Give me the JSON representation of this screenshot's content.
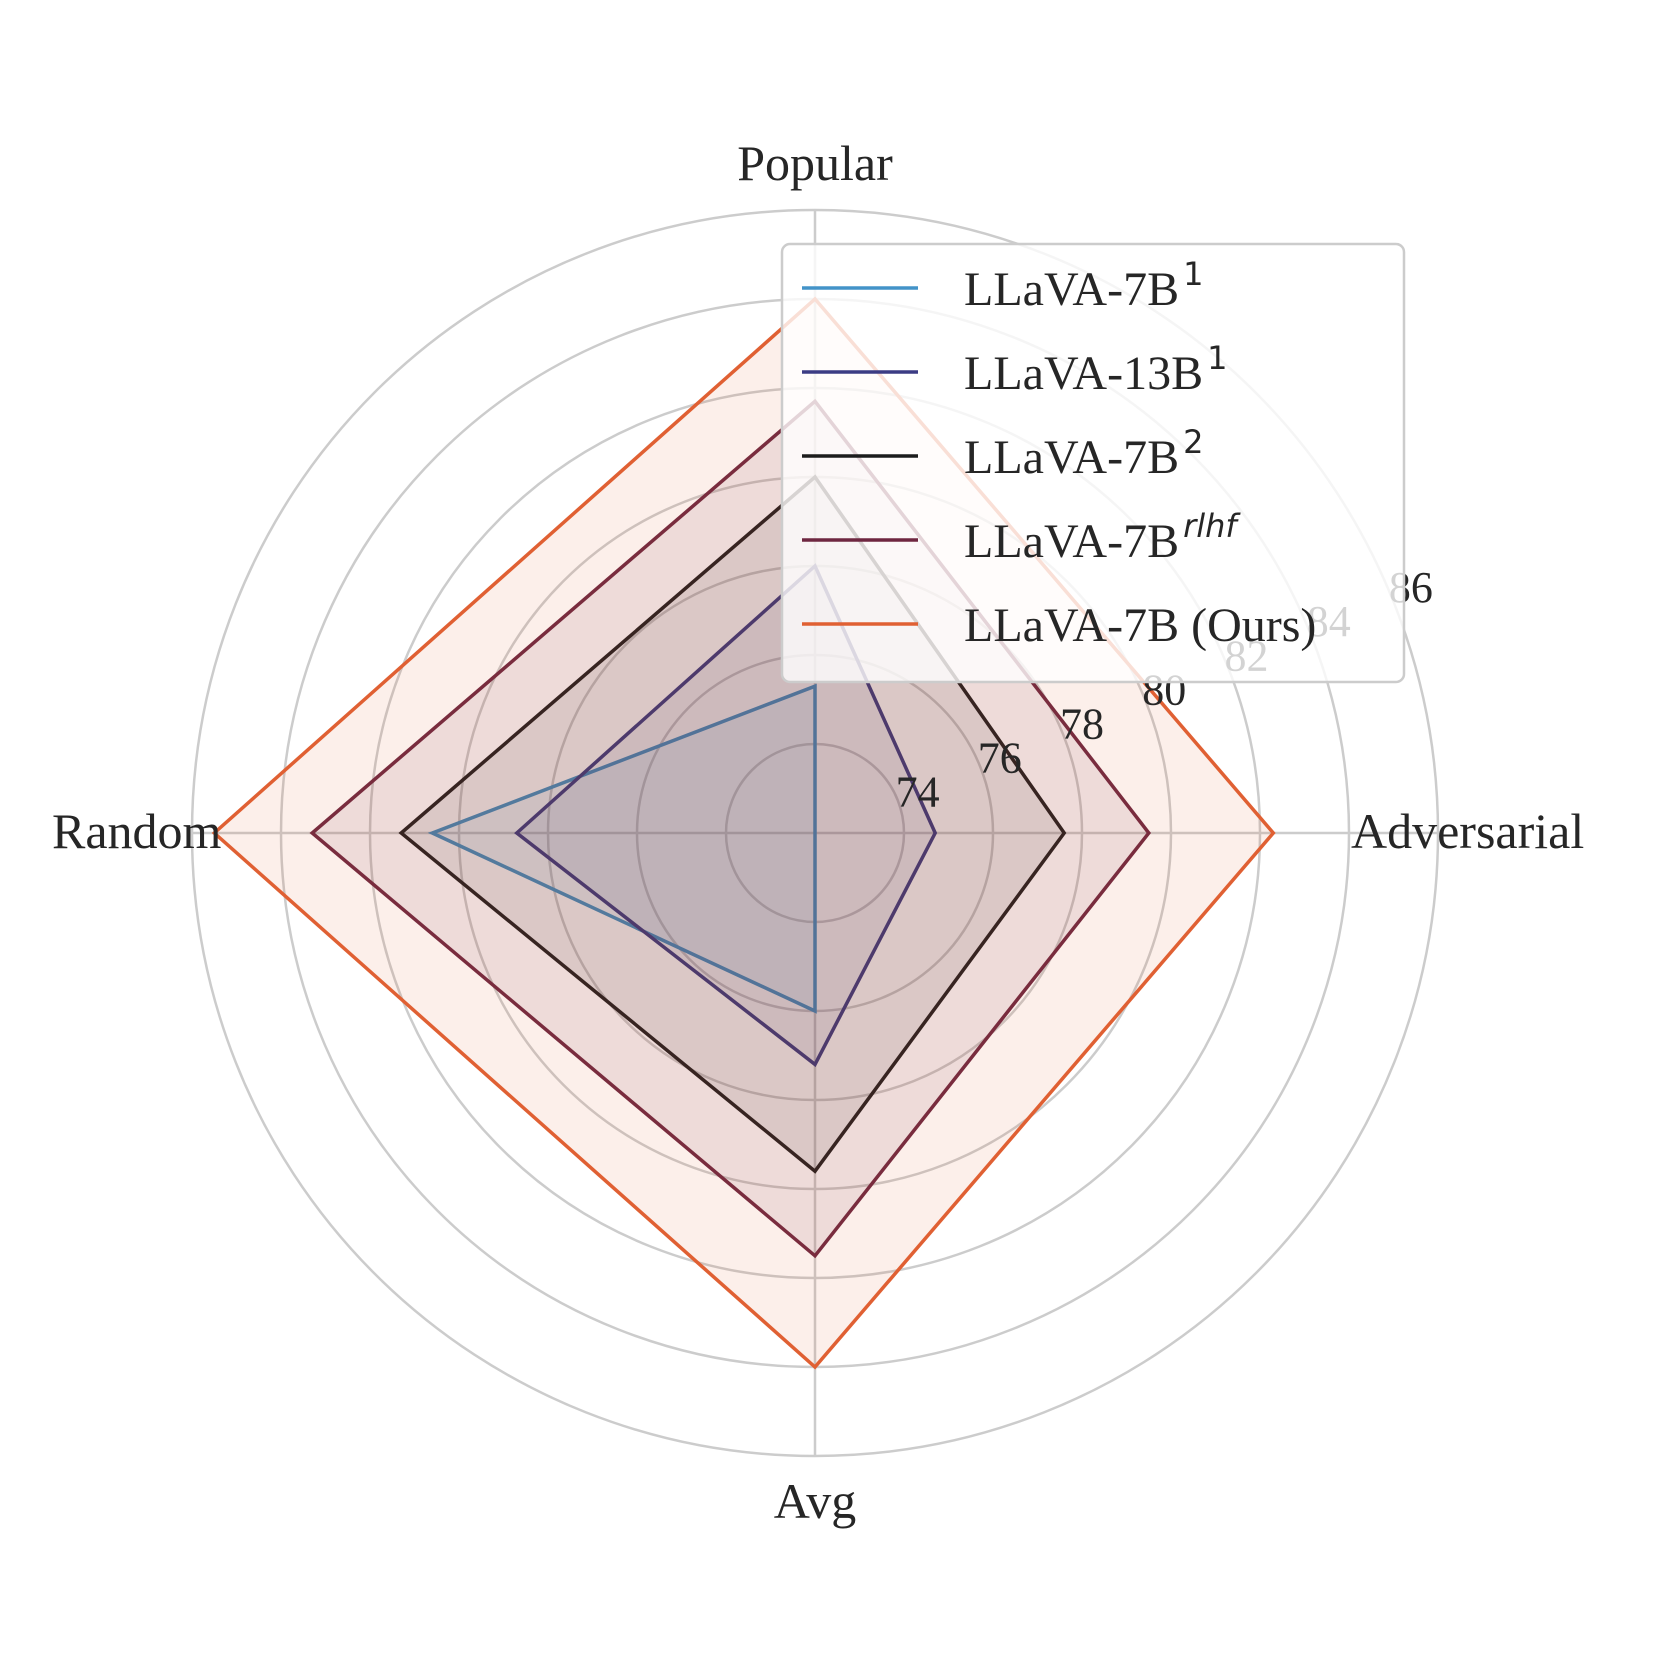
{
  "chart_data": {
    "type": "radar",
    "title": "",
    "axes": [
      "Popular",
      "Adversarial",
      "Avg",
      "Random"
    ],
    "radial_ticks": [
      "74",
      "76",
      "78",
      "80",
      "82",
      "84",
      "86"
    ],
    "radial_range": [
      72,
      86
    ],
    "grid": true,
    "legend_position": "top-right",
    "series": [
      {
        "name": "LLaVA-7B",
        "sup": "1",
        "sup_style": "normal",
        "color": "#4393c8",
        "values": {
          "Popular": 75.3,
          "Adversarial": 72.0,
          "Avg": 76.0,
          "Random": 80.6
        }
      },
      {
        "name": "LLaVA-13B",
        "sup": "1",
        "sup_style": "normal",
        "color": "#3b3c84",
        "values": {
          "Popular": 78.0,
          "Adversarial": 74.7,
          "Avg": 77.2,
          "Random": 78.7
        }
      },
      {
        "name": "LLaVA-7B",
        "sup": "2",
        "sup_style": "normal",
        "color": "#1c1c1c",
        "values": {
          "Popular": 80.0,
          "Adversarial": 77.6,
          "Avg": 79.6,
          "Random": 81.3
        }
      },
      {
        "name": "LLaVA-7B",
        "sup": "rlhf",
        "sup_style": "italic",
        "color": "#6e2640",
        "values": {
          "Popular": 81.7,
          "Adversarial": 79.5,
          "Avg": 81.5,
          "Random": 83.3
        }
      },
      {
        "name": "LLaVA-7B (Ours)",
        "sup": "",
        "sup_style": "normal",
        "color": "#e06033",
        "values": {
          "Popular": 84.0,
          "Adversarial": 82.3,
          "Avg": 84.0,
          "Random": 85.5
        }
      }
    ]
  }
}
